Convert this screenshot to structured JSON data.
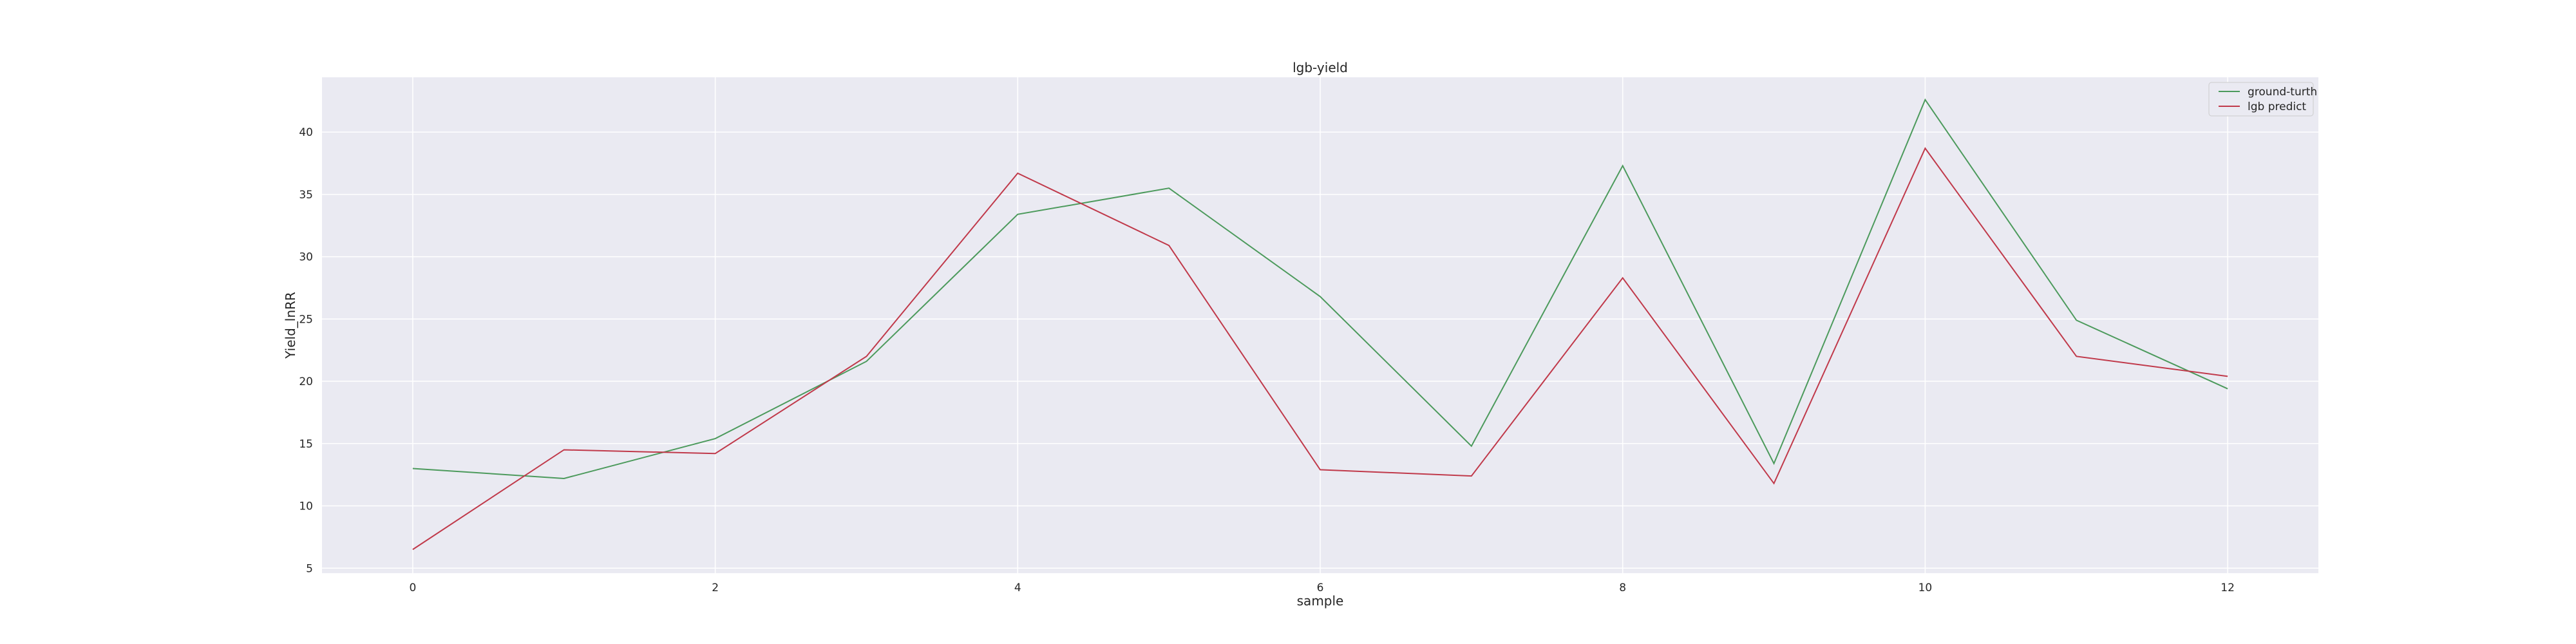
{
  "chart_data": {
    "type": "line",
    "title": "lgb-yield",
    "xlabel": "sample",
    "ylabel": "Yield_lnRR",
    "x": [
      0,
      1,
      2,
      3,
      4,
      5,
      6,
      7,
      8,
      9,
      10,
      11,
      12
    ],
    "xticks": [
      0,
      2,
      4,
      6,
      8,
      10,
      12
    ],
    "yticks": [
      5,
      10,
      15,
      20,
      25,
      30,
      35,
      40
    ],
    "xlim": [
      -0.6,
      12.6
    ],
    "ylim": [
      4.6,
      44.4
    ],
    "grid": true,
    "legend_position": "top-right",
    "series": [
      {
        "name": "ground-turth",
        "color": "#4c9a5c",
        "values": [
          13.0,
          12.2,
          15.4,
          21.6,
          33.4,
          35.5,
          26.8,
          14.8,
          37.3,
          13.4,
          42.6,
          24.9,
          19.4
        ]
      },
      {
        "name": "lgb predict",
        "color": "#c0394a",
        "values": [
          6.5,
          14.5,
          14.2,
          22.0,
          36.7,
          30.9,
          12.9,
          12.4,
          28.3,
          11.8,
          38.7,
          22.0,
          20.4
        ]
      }
    ]
  }
}
